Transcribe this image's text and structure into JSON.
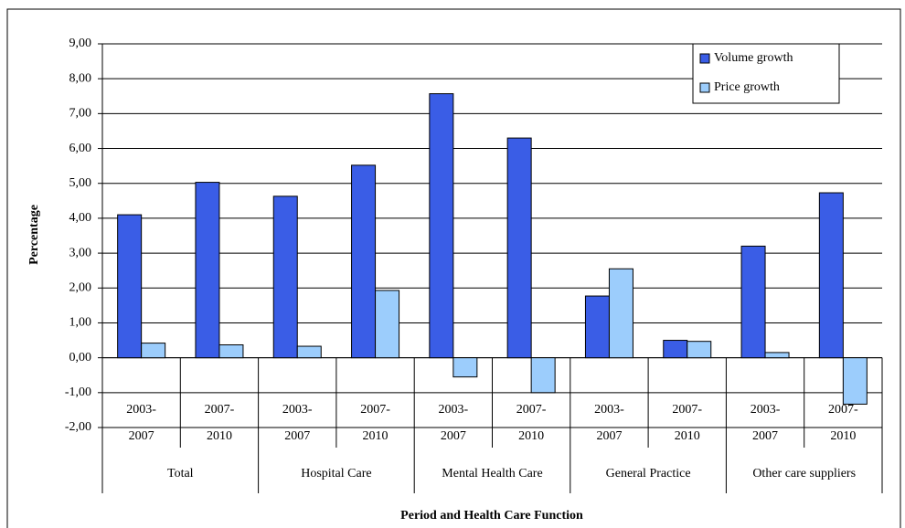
{
  "chart_data": {
    "type": "bar",
    "y_label": "Percentage",
    "x_label": "Period and Health Care Function",
    "categories": [
      "2003-2007",
      "2007-2010",
      "2003-2007",
      "2007-2010",
      "2003-2007",
      "2007-2010",
      "2003-2007",
      "2007-2010",
      "2003-2007",
      "2007-2010"
    ],
    "groups": [
      "Total",
      "Hospital Care",
      "Mental Health Care",
      "General Practice",
      "Other care suppliers"
    ],
    "series": [
      {
        "name": "Volume growth",
        "color": "#3a5de6",
        "values": [
          4.1,
          5.03,
          4.63,
          5.52,
          7.57,
          6.3,
          1.77,
          0.5,
          3.2,
          4.73
        ]
      },
      {
        "name": "Price growth",
        "color": "#9ccdfc",
        "values": [
          0.42,
          0.37,
          0.33,
          1.93,
          -0.55,
          -1.0,
          2.55,
          0.47,
          0.15,
          -1.33
        ]
      }
    ],
    "ylim": [
      -2,
      9
    ],
    "yticks": [
      {
        "value": -2,
        "label": "-2,00"
      },
      {
        "value": -1,
        "label": "-1,00"
      },
      {
        "value": 0,
        "label": "0,00"
      },
      {
        "value": 1,
        "label": "1,00"
      },
      {
        "value": 2,
        "label": "2,00"
      },
      {
        "value": 3,
        "label": "3,00"
      },
      {
        "value": 4,
        "label": "4,00"
      },
      {
        "value": 5,
        "label": "5,00"
      },
      {
        "value": 6,
        "label": "6,00"
      },
      {
        "value": 7,
        "label": "7,00"
      },
      {
        "value": 8,
        "label": "8,00"
      },
      {
        "value": 9,
        "label": "9,00"
      }
    ],
    "grid": true,
    "legend": "top-right"
  }
}
